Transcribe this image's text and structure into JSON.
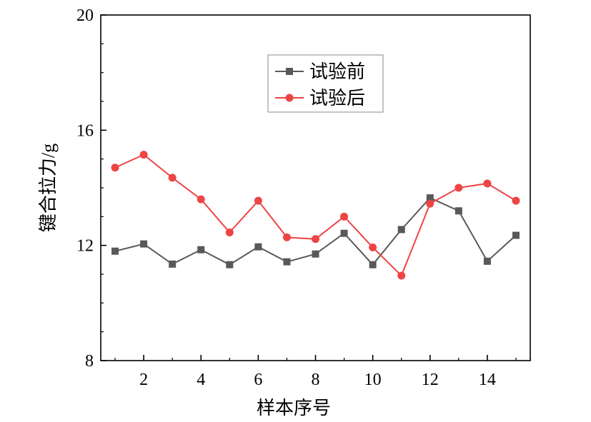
{
  "chart_data": {
    "type": "line",
    "xlabel": "样本序号",
    "ylabel": "键合拉力/g",
    "xlim": [
      0.5,
      15.5
    ],
    "ylim": [
      8,
      20
    ],
    "x_ticks": [
      2,
      4,
      6,
      8,
      10,
      12,
      14
    ],
    "y_ticks": [
      8,
      12,
      16,
      20
    ],
    "grid": false,
    "legend_position": "top-center",
    "x": [
      1,
      2,
      3,
      4,
      5,
      6,
      7,
      8,
      9,
      10,
      11,
      12,
      13,
      14,
      15
    ],
    "series": [
      {
        "name": "试验前",
        "color": "#595959",
        "marker": "square",
        "values": [
          11.8,
          12.05,
          11.35,
          11.85,
          11.33,
          11.95,
          11.43,
          11.7,
          12.42,
          11.33,
          12.55,
          13.65,
          13.2,
          11.45,
          12.35
        ]
      },
      {
        "name": "试验后",
        "color": "#ee4444",
        "marker": "circle",
        "values": [
          14.7,
          15.15,
          14.35,
          13.6,
          12.45,
          13.55,
          12.28,
          12.22,
          13.0,
          11.93,
          10.95,
          13.45,
          14.0,
          14.15,
          13.55
        ]
      }
    ]
  }
}
